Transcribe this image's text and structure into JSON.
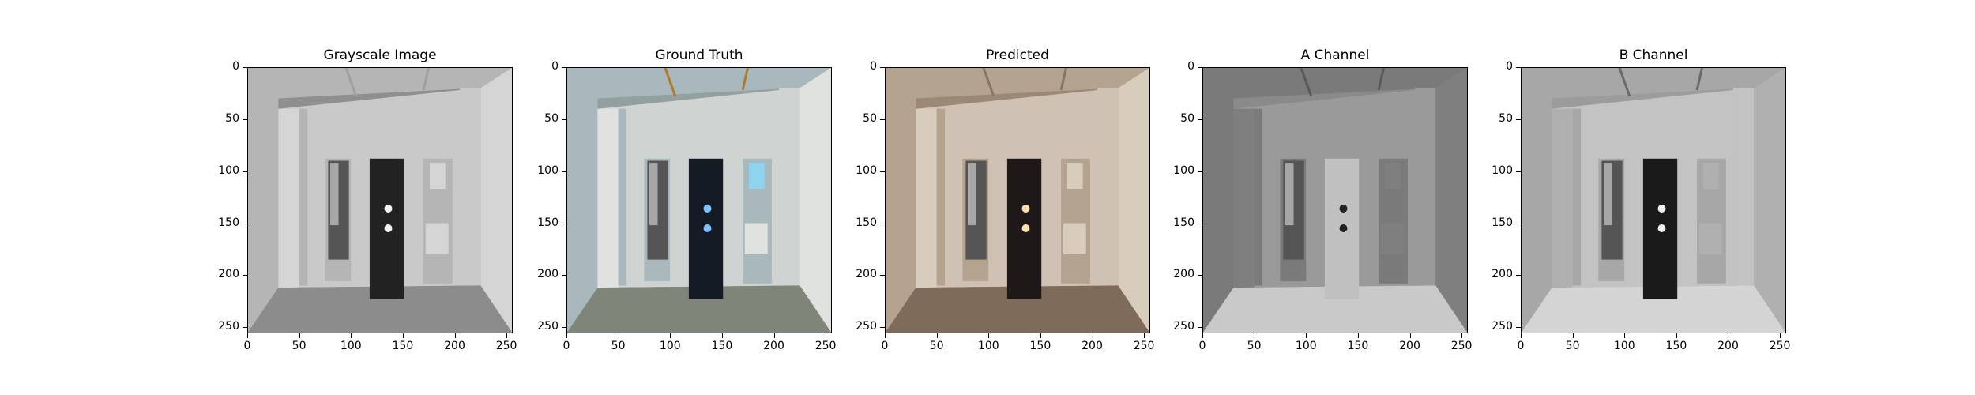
{
  "panels": [
    {
      "title": "Grayscale Image",
      "variant": "gray"
    },
    {
      "title": "Ground Truth",
      "variant": "truth"
    },
    {
      "title": "Predicted",
      "variant": "pred"
    },
    {
      "title": "A Channel",
      "variant": "achan"
    },
    {
      "title": "B Channel",
      "variant": "bchan"
    }
  ],
  "axes": {
    "y_ticks": [
      "0",
      "50",
      "100",
      "150",
      "200",
      "250"
    ],
    "x_ticks": [
      "0",
      "50",
      "100",
      "150",
      "200",
      "250"
    ],
    "range": [
      0,
      256
    ]
  }
}
